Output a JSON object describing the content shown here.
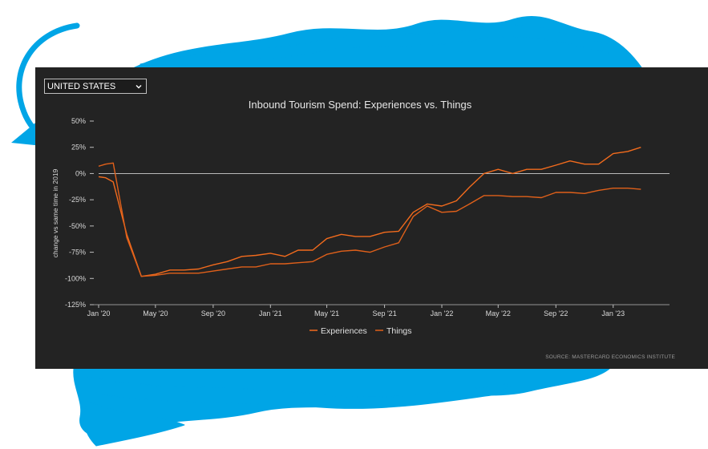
{
  "country_select": {
    "value": "UNITED STATES"
  },
  "colors": {
    "brush": "#00a5e6",
    "panel": "#232323",
    "experiences": "#f26b1d",
    "things": "#e0601a"
  },
  "chart_data": {
    "type": "line",
    "title": "Inbound Tourism Spend: Experiences vs. Things",
    "ylabel": "change vs same time in 2019",
    "xlabel": "",
    "ylim": [
      -125,
      50
    ],
    "yticks": [
      50,
      25,
      0,
      -25,
      -50,
      -75,
      -100,
      -125
    ],
    "ytick_labels": [
      "50%",
      "25%",
      "0%",
      "-25%",
      "-50%",
      "-75%",
      "-100%",
      "-125%"
    ],
    "xlim": [
      "2020-01",
      "2023-05"
    ],
    "xticks": [
      "2020-01",
      "2020-05",
      "2020-09",
      "2021-01",
      "2021-05",
      "2021-09",
      "2022-01",
      "2022-05",
      "2022-09",
      "2023-01"
    ],
    "xtick_labels": [
      "Jan '20",
      "May '20",
      "Sep '20",
      "Jan '21",
      "May '21",
      "Sep '21",
      "Jan '22",
      "May '22",
      "Sep '22",
      "Jan '23"
    ],
    "grid": false,
    "zero_line": true,
    "legend": "bottom-center",
    "series": [
      {
        "name": "Experiences",
        "points": [
          [
            "2020-01-01",
            -3
          ],
          [
            "2020-01-16",
            -4
          ],
          [
            "2020-02-01",
            -8
          ],
          [
            "2020-03-01",
            -58
          ],
          [
            "2020-04-01",
            -98
          ],
          [
            "2020-05-01",
            -96
          ],
          [
            "2020-06-01",
            -92
          ],
          [
            "2020-07-01",
            -92
          ],
          [
            "2020-08-01",
            -91
          ],
          [
            "2020-09-01",
            -87
          ],
          [
            "2020-10-01",
            -84
          ],
          [
            "2020-11-01",
            -79
          ],
          [
            "2020-12-01",
            -78
          ],
          [
            "2021-01-01",
            -76
          ],
          [
            "2021-02-01",
            -79
          ],
          [
            "2021-03-01",
            -73
          ],
          [
            "2021-04-01",
            -73
          ],
          [
            "2021-05-01",
            -62
          ],
          [
            "2021-06-01",
            -58
          ],
          [
            "2021-07-01",
            -60
          ],
          [
            "2021-08-01",
            -60
          ],
          [
            "2021-09-01",
            -56
          ],
          [
            "2021-10-01",
            -55
          ],
          [
            "2021-11-01",
            -37
          ],
          [
            "2021-12-01",
            -29
          ],
          [
            "2022-01-01",
            -31
          ],
          [
            "2022-02-01",
            -26
          ],
          [
            "2022-03-01",
            -13
          ],
          [
            "2022-04-01",
            0
          ],
          [
            "2022-05-01",
            4
          ],
          [
            "2022-06-01",
            0
          ],
          [
            "2022-07-01",
            4
          ],
          [
            "2022-08-01",
            4
          ],
          [
            "2022-09-01",
            8
          ],
          [
            "2022-10-01",
            12
          ],
          [
            "2022-11-01",
            9
          ],
          [
            "2022-12-01",
            9
          ],
          [
            "2023-01-01",
            19
          ],
          [
            "2023-02-01",
            21
          ],
          [
            "2023-03-01",
            25
          ]
        ]
      },
      {
        "name": "Things",
        "points": [
          [
            "2020-01-01",
            7
          ],
          [
            "2020-01-16",
            9
          ],
          [
            "2020-02-01",
            10
          ],
          [
            "2020-03-01",
            -61
          ],
          [
            "2020-04-01",
            -98
          ],
          [
            "2020-05-01",
            -97
          ],
          [
            "2020-06-01",
            -95
          ],
          [
            "2020-07-01",
            -95
          ],
          [
            "2020-08-01",
            -95
          ],
          [
            "2020-09-01",
            -93
          ],
          [
            "2020-10-01",
            -91
          ],
          [
            "2020-11-01",
            -89
          ],
          [
            "2020-12-01",
            -89
          ],
          [
            "2021-01-01",
            -86
          ],
          [
            "2021-02-01",
            -86
          ],
          [
            "2021-03-01",
            -85
          ],
          [
            "2021-04-01",
            -84
          ],
          [
            "2021-05-01",
            -77
          ],
          [
            "2021-06-01",
            -74
          ],
          [
            "2021-07-01",
            -73
          ],
          [
            "2021-08-01",
            -75
          ],
          [
            "2021-09-01",
            -70
          ],
          [
            "2021-10-01",
            -66
          ],
          [
            "2021-11-01",
            -41
          ],
          [
            "2021-12-01",
            -31
          ],
          [
            "2022-01-01",
            -37
          ],
          [
            "2022-02-01",
            -36
          ],
          [
            "2022-03-01",
            -29
          ],
          [
            "2022-04-01",
            -21
          ],
          [
            "2022-05-01",
            -21
          ],
          [
            "2022-06-01",
            -22
          ],
          [
            "2022-07-01",
            -22
          ],
          [
            "2022-08-01",
            -23
          ],
          [
            "2022-09-01",
            -18
          ],
          [
            "2022-10-01",
            -18
          ],
          [
            "2022-11-01",
            -19
          ],
          [
            "2022-12-01",
            -16
          ],
          [
            "2023-01-01",
            -14
          ],
          [
            "2023-02-01",
            -14
          ],
          [
            "2023-03-01",
            -15
          ]
        ]
      }
    ]
  },
  "source_note": "SOURCE: MASTERCARD ECONOMICS INSTITUTE"
}
